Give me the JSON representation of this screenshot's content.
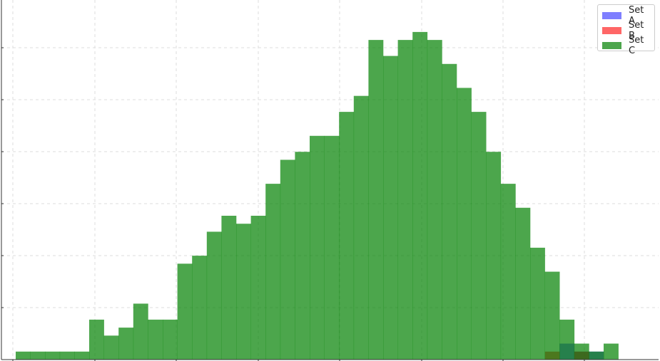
{
  "chart_data": {
    "type": "bar",
    "subtype": "overlaid-histogram",
    "bins": {
      "count": 41,
      "start": 0,
      "step": 1
    },
    "ylim": [
      0,
      45
    ],
    "grid": true,
    "legend_position": "top-right",
    "series": [
      {
        "name": "Set A",
        "color": "#0000ff",
        "opacity": 0.5,
        "values": [
          0,
          0,
          0,
          0,
          0,
          0,
          0,
          0,
          0,
          0,
          0,
          0,
          0,
          0,
          0,
          0,
          0,
          0,
          0,
          0,
          0,
          0,
          0,
          0,
          0,
          0,
          0,
          0,
          0,
          0,
          0,
          0,
          0,
          0,
          0,
          0,
          0,
          2,
          1,
          1,
          0
        ]
      },
      {
        "name": "Set B",
        "color": "#ff0000",
        "opacity": 0.6,
        "values": [
          0,
          0,
          0,
          0,
          0,
          0,
          0,
          0,
          0,
          0,
          0,
          0,
          0,
          0,
          0,
          0,
          0,
          0,
          0,
          0,
          0,
          0,
          0,
          0,
          0,
          0,
          0,
          0,
          0,
          0,
          0,
          0,
          0,
          0,
          0,
          0,
          1,
          0,
          1,
          0,
          0
        ]
      },
      {
        "name": "Set C",
        "color": "#008000",
        "opacity": 0.7,
        "values": [
          1,
          1,
          1,
          1,
          1,
          5,
          3,
          4,
          7,
          5,
          5,
          12,
          13,
          16,
          18,
          17,
          18,
          22,
          25,
          26,
          28,
          28,
          31,
          33,
          40,
          38,
          40,
          41,
          40,
          37,
          34,
          31,
          26,
          22,
          19,
          14,
          11,
          5,
          2,
          1,
          2
        ]
      }
    ]
  }
}
